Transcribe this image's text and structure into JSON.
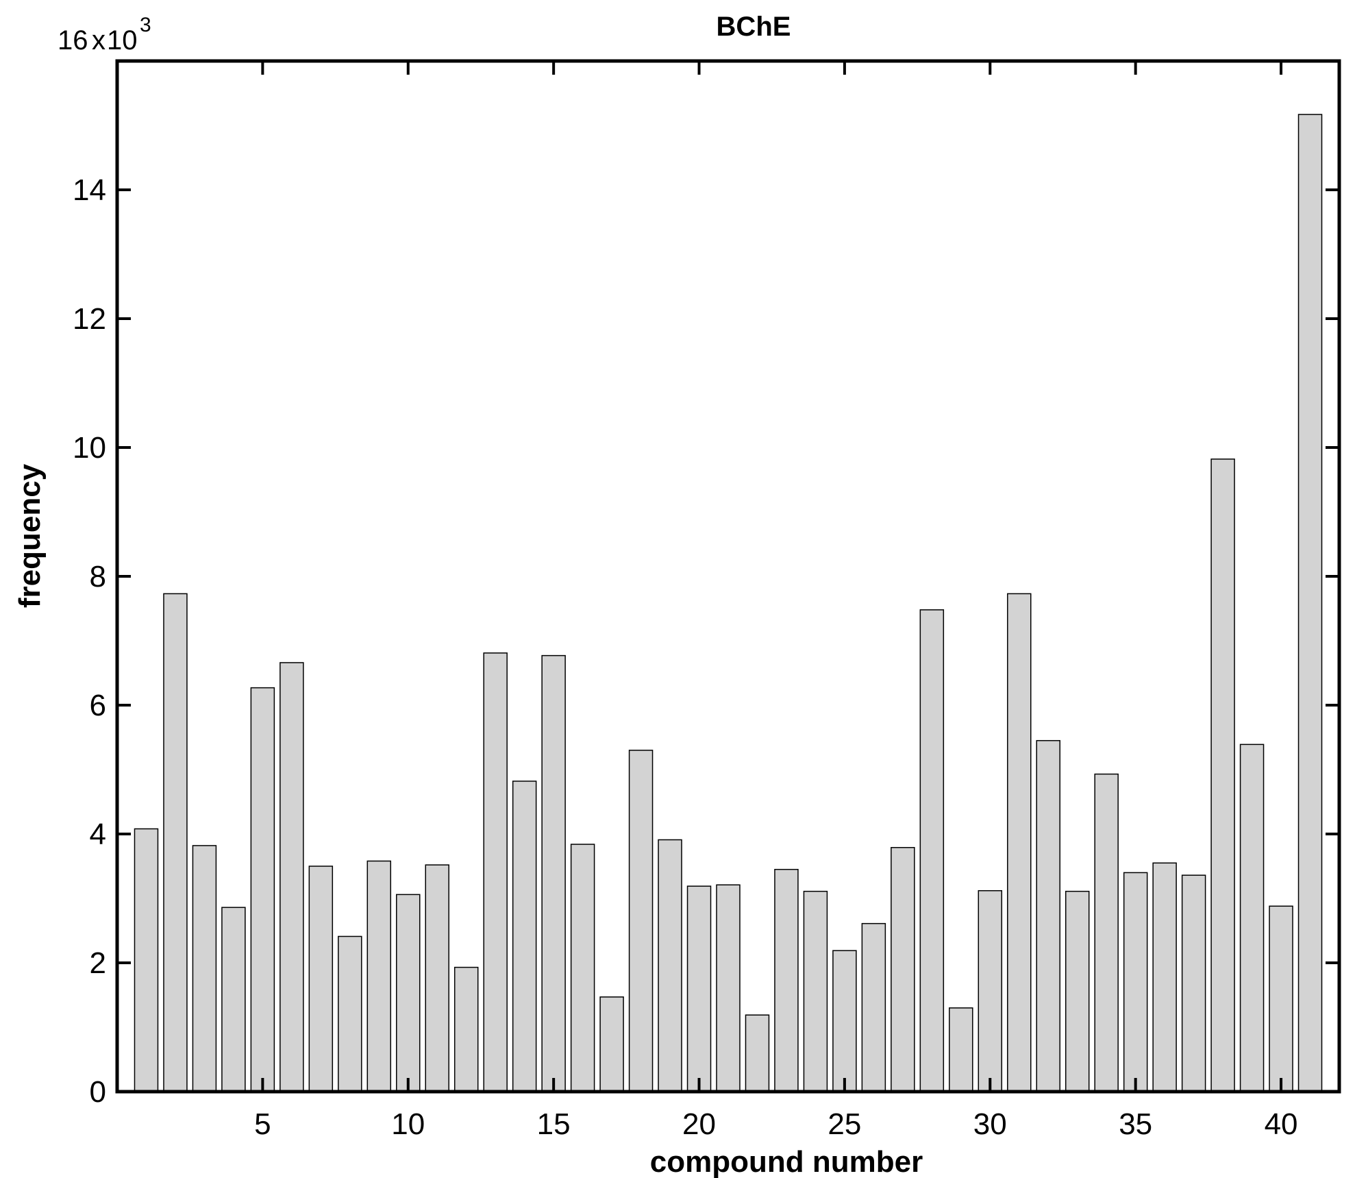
{
  "chart_data": {
    "type": "bar",
    "title": "BChE",
    "xlabel": "compound number",
    "ylabel": "frequency",
    "y_multiplier": {
      "base": "16",
      "sep": "x",
      "factor": "10",
      "exponent": "3"
    },
    "xlim": [
      0,
      42
    ],
    "ylim": [
      0,
      16000
    ],
    "x_ticks": [
      5,
      10,
      15,
      20,
      25,
      30,
      35,
      40
    ],
    "y_ticks": [
      0,
      2,
      4,
      6,
      8,
      10,
      12,
      14
    ],
    "y_tick_scale": 1000,
    "grid": false,
    "legend": "none",
    "bar_color": "#d3d3d3",
    "x": [
      1,
      2,
      3,
      4,
      5,
      6,
      7,
      8,
      9,
      10,
      11,
      12,
      13,
      14,
      15,
      16,
      17,
      18,
      19,
      20,
      21,
      22,
      23,
      24,
      25,
      26,
      27,
      28,
      29,
      30,
      31,
      32,
      33,
      34,
      35,
      36,
      37,
      38,
      39,
      40,
      41
    ],
    "values": [
      4080,
      7730,
      3820,
      2860,
      6270,
      6660,
      3500,
      2410,
      3580,
      3060,
      3520,
      1930,
      6810,
      4820,
      6770,
      3840,
      1470,
      5300,
      3910,
      3190,
      3210,
      1190,
      3450,
      3110,
      2190,
      2610,
      3790,
      7480,
      1300,
      3120,
      7730,
      5450,
      3110,
      4930,
      3400,
      3550,
      3360,
      9820,
      5390,
      2880,
      15170
    ]
  }
}
